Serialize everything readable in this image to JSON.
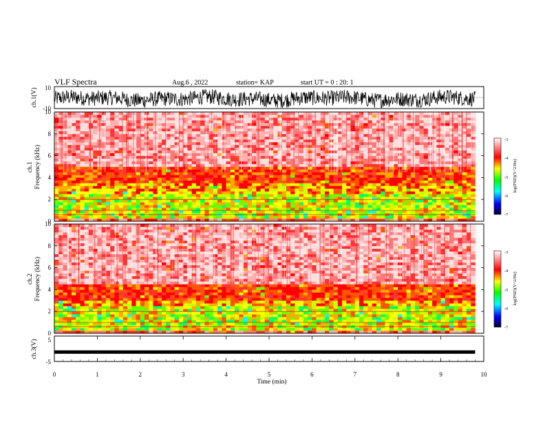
{
  "header": {
    "title": "VLF Spectra",
    "date": "Aug.6 , 2022",
    "station": "station= KAP",
    "start": "start UT = 0 : 20: 1"
  },
  "chart_data": [
    {
      "type": "line",
      "title": "",
      "ylabel": "ch.1(V)",
      "xlim": [
        0,
        10
      ],
      "ylim": [
        -10,
        10
      ],
      "yticks": [
        "10",
        "-10"
      ],
      "series": [
        {
          "name": "",
          "color": "#000000",
          "range": [
            -10,
            10
          ],
          "typical": [
            -8,
            6
          ]
        }
      ]
    },
    {
      "type": "heatmap",
      "ylabel_line1": "ch.1",
      "ylabel_line2": "Frequency (kHz)",
      "xlim": [
        0,
        9.8
      ],
      "ylim": [
        0,
        10
      ],
      "yticks": [
        "0",
        "2",
        "4",
        "6",
        "8",
        "10"
      ],
      "bands_kHz": {
        "strong": [
          0.3,
          3.6
        ],
        "moderate": [
          3.6,
          5.0
        ],
        "weak": [
          5.0,
          10
        ]
      },
      "colorbar": {
        "label": "log(PSD)(V^2/Hz)",
        "ticks": [
          "-3",
          "-4",
          "-5",
          "-6",
          "-7"
        ],
        "range": [
          -7,
          -3
        ]
      }
    },
    {
      "type": "heatmap",
      "ylabel_line1": "ch.2",
      "ylabel_line2": "Frequency (kHz)",
      "xlim": [
        0,
        9.8
      ],
      "ylim": [
        0,
        10
      ],
      "yticks": [
        "0",
        "2",
        "4",
        "6",
        "8",
        "10"
      ],
      "bands_kHz": {
        "strong": [
          0.3,
          3.0
        ],
        "moderate": [
          3.0,
          4.5
        ],
        "weak": [
          4.5,
          10
        ]
      },
      "colorbar": {
        "label": "log(PSD)(V^2/Hz)",
        "ticks": [
          "-3",
          "-4",
          "-5",
          "-6",
          "-7"
        ],
        "range": [
          -7,
          -3
        ]
      }
    },
    {
      "type": "line",
      "ylabel": "ch.3(V)",
      "xlabel": "Time (min)",
      "xlim": [
        0,
        10
      ],
      "ylim": [
        -5,
        5
      ],
      "yticks": [
        "5",
        "-5"
      ],
      "xticks": [
        "0",
        "1",
        "2",
        "3",
        "4",
        "5",
        "6",
        "7",
        "8",
        "9",
        "10"
      ],
      "series": [
        {
          "name": "",
          "color": "#000000",
          "level": -1.3
        }
      ]
    }
  ],
  "colors": {
    "cb_stops": [
      "#000033",
      "#0000ff",
      "#00ffff",
      "#00ff00",
      "#ffff00",
      "#ff0000",
      "#ffffff"
    ]
  }
}
